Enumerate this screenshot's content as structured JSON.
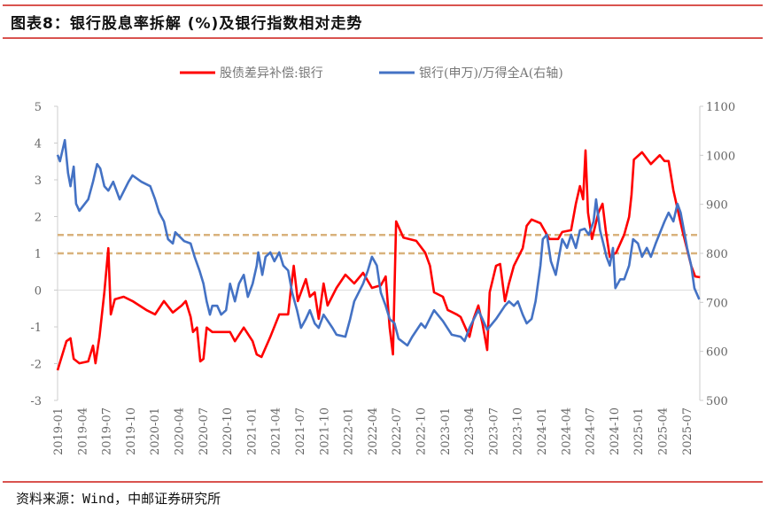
{
  "title": "图表8：银行股息率拆解 (%)及银行指数相对走势",
  "source": "资料来源：Wind，中邮证券研究所",
  "chart_data": {
    "type": "line",
    "title": "图表8：银行股息率拆解 (%)及银行指数相对走势",
    "x_unit": "months since 2019-01",
    "x_tick_labels": [
      "2019-01",
      "2019-04",
      "2019-07",
      "2019-10",
      "2020-01",
      "2020-04",
      "2020-07",
      "2020-10",
      "2021-01",
      "2021-04",
      "2021-07",
      "2021-10",
      "2022-01",
      "2022-04",
      "2022-07",
      "2022-10",
      "2023-01",
      "2023-04",
      "2023-07",
      "2023-10",
      "2024-01",
      "2024-04",
      "2024-07",
      "2024-10",
      "2025-01",
      "2025-04",
      "2025-07"
    ],
    "left_axis": {
      "ylim": [
        -3,
        5
      ],
      "ticks": [
        "-3",
        "-2",
        "-1",
        "0",
        "1",
        "2",
        "3",
        "4",
        "5"
      ]
    },
    "right_axis": {
      "ylim": [
        500,
        1100
      ],
      "ticks": [
        "500",
        "600",
        "700",
        "800",
        "900",
        "1000",
        "1100"
      ]
    },
    "reference_lines": [
      {
        "value": 1.5,
        "axis": "left",
        "color": "#D9B27C"
      },
      {
        "value": 1.0,
        "axis": "left",
        "color": "#D9B27C"
      }
    ],
    "legend_position": "top-center",
    "series": [
      {
        "name": "股债差异补偿:银行",
        "axis": "left",
        "color": "#FF0000",
        "points": [
          [
            0,
            -2.18
          ],
          [
            1.1,
            -1.39
          ],
          [
            1.6,
            -1.31
          ],
          [
            2.0,
            -1.87
          ],
          [
            2.7,
            -1.99
          ],
          [
            3.8,
            -1.94
          ],
          [
            4.4,
            -1.51
          ],
          [
            4.7,
            -1.99
          ],
          [
            5.2,
            -1.27
          ],
          [
            5.8,
            -0.06
          ],
          [
            6.3,
            1.14
          ],
          [
            6.6,
            -0.66
          ],
          [
            7.1,
            -0.25
          ],
          [
            8.2,
            -0.18
          ],
          [
            9.3,
            -0.3
          ],
          [
            11.0,
            -0.54
          ],
          [
            12.1,
            -0.66
          ],
          [
            13.2,
            -0.3
          ],
          [
            14.3,
            -0.61
          ],
          [
            15.4,
            -0.42
          ],
          [
            15.9,
            -0.3
          ],
          [
            16.5,
            -0.73
          ],
          [
            16.8,
            -1.14
          ],
          [
            17.3,
            -1.02
          ],
          [
            17.7,
            -1.94
          ],
          [
            18.1,
            -1.87
          ],
          [
            18.5,
            -1.02
          ],
          [
            19.2,
            -1.14
          ],
          [
            21.4,
            -1.14
          ],
          [
            22.0,
            -1.39
          ],
          [
            23.1,
            -1.02
          ],
          [
            24.2,
            -1.39
          ],
          [
            24.7,
            -1.75
          ],
          [
            25.3,
            -1.82
          ],
          [
            26.4,
            -1.27
          ],
          [
            27.5,
            -0.66
          ],
          [
            28.6,
            -0.66
          ],
          [
            28.9,
            -0.06
          ],
          [
            29.3,
            0.66
          ],
          [
            29.8,
            -0.3
          ],
          [
            30.8,
            0.3
          ],
          [
            31.3,
            -0.18
          ],
          [
            31.9,
            -0.06
          ],
          [
            32.4,
            -0.78
          ],
          [
            33.0,
            0.18
          ],
          [
            33.5,
            -0.42
          ],
          [
            34.6,
            0.06
          ],
          [
            35.7,
            0.42
          ],
          [
            36.8,
            0.18
          ],
          [
            37.9,
            0.47
          ],
          [
            39.0,
            0.06
          ],
          [
            40.1,
            0.13
          ],
          [
            40.7,
            0.37
          ],
          [
            41.2,
            -1.02
          ],
          [
            41.6,
            -1.75
          ],
          [
            42.0,
            1.87
          ],
          [
            42.9,
            1.43
          ],
          [
            44.5,
            1.34
          ],
          [
            45.6,
            1.02
          ],
          [
            46.2,
            0.66
          ],
          [
            46.7,
            -0.06
          ],
          [
            47.8,
            -0.18
          ],
          [
            48.4,
            -0.54
          ],
          [
            49.5,
            -0.66
          ],
          [
            50.0,
            -0.73
          ],
          [
            51.1,
            -1.27
          ],
          [
            51.6,
            -0.78
          ],
          [
            52.2,
            -0.42
          ],
          [
            52.7,
            -0.9
          ],
          [
            53.3,
            -1.63
          ],
          [
            53.6,
            -0.06
          ],
          [
            54.4,
            0.66
          ],
          [
            54.9,
            0.71
          ],
          [
            55.5,
            -0.3
          ],
          [
            56.0,
            0.18
          ],
          [
            56.6,
            0.66
          ],
          [
            57.7,
            1.14
          ],
          [
            58.2,
            1.75
          ],
          [
            58.8,
            1.92
          ],
          [
            59.9,
            1.82
          ],
          [
            61.0,
            1.39
          ],
          [
            62.1,
            1.39
          ],
          [
            62.6,
            1.58
          ],
          [
            63.7,
            1.63
          ],
          [
            64.3,
            2.35
          ],
          [
            64.8,
            2.83
          ],
          [
            65.2,
            2.47
          ],
          [
            65.5,
            3.8
          ],
          [
            65.8,
            2.11
          ],
          [
            66.3,
            1.39
          ],
          [
            67.1,
            2.11
          ],
          [
            67.6,
            2.35
          ],
          [
            68.0,
            1.63
          ],
          [
            68.5,
            0.9
          ],
          [
            69.3,
            1.02
          ],
          [
            70.3,
            1.51
          ],
          [
            70.9,
            1.99
          ],
          [
            71.2,
            2.59
          ],
          [
            71.5,
            3.55
          ],
          [
            72.5,
            3.75
          ],
          [
            73.6,
            3.43
          ],
          [
            74.7,
            3.67
          ],
          [
            75.3,
            3.51
          ],
          [
            75.8,
            3.51
          ],
          [
            76.4,
            2.71
          ],
          [
            77.5,
            1.63
          ],
          [
            78.6,
            0.66
          ],
          [
            79.1,
            0.37
          ],
          [
            79.7,
            0.35
          ]
        ]
      },
      {
        "name": "银行(申万)/万得全A(右轴)",
        "axis": "right",
        "color": "#4472C4",
        "points": [
          [
            0,
            1001
          ],
          [
            0.3,
            988
          ],
          [
            0.9,
            1031
          ],
          [
            1.3,
            964
          ],
          [
            1.6,
            937
          ],
          [
            2.0,
            977
          ],
          [
            2.3,
            901
          ],
          [
            2.7,
            887
          ],
          [
            3.8,
            910
          ],
          [
            4.4,
            946
          ],
          [
            4.9,
            982
          ],
          [
            5.3,
            973
          ],
          [
            5.8,
            937
          ],
          [
            6.3,
            928
          ],
          [
            6.9,
            946
          ],
          [
            7.7,
            910
          ],
          [
            8.8,
            946
          ],
          [
            9.3,
            959
          ],
          [
            10.4,
            946
          ],
          [
            11.5,
            937
          ],
          [
            12.1,
            910
          ],
          [
            12.6,
            883
          ],
          [
            13.2,
            865
          ],
          [
            13.7,
            829
          ],
          [
            14.3,
            820
          ],
          [
            14.6,
            843
          ],
          [
            15.7,
            825
          ],
          [
            16.5,
            820
          ],
          [
            17.0,
            793
          ],
          [
            17.6,
            765
          ],
          [
            18.1,
            738
          ],
          [
            18.5,
            702
          ],
          [
            18.9,
            675
          ],
          [
            19.2,
            693
          ],
          [
            19.8,
            693
          ],
          [
            20.3,
            675
          ],
          [
            20.9,
            684
          ],
          [
            21.4,
            738
          ],
          [
            22.0,
            702
          ],
          [
            22.5,
            738
          ],
          [
            23.1,
            756
          ],
          [
            23.6,
            711
          ],
          [
            24.2,
            738
          ],
          [
            24.7,
            775
          ],
          [
            24.9,
            802
          ],
          [
            25.4,
            756
          ],
          [
            25.8,
            793
          ],
          [
            26.4,
            802
          ],
          [
            26.9,
            784
          ],
          [
            27.5,
            802
          ],
          [
            28.0,
            775
          ],
          [
            28.6,
            765
          ],
          [
            29.1,
            720
          ],
          [
            29.7,
            684
          ],
          [
            30.2,
            648
          ],
          [
            30.8,
            666
          ],
          [
            31.3,
            684
          ],
          [
            31.9,
            657
          ],
          [
            32.4,
            648
          ],
          [
            33.0,
            675
          ],
          [
            34.1,
            648
          ],
          [
            34.6,
            634
          ],
          [
            35.7,
            630
          ],
          [
            36.3,
            666
          ],
          [
            36.8,
            702
          ],
          [
            37.9,
            738
          ],
          [
            38.5,
            765
          ],
          [
            39.0,
            793
          ],
          [
            39.6,
            775
          ],
          [
            40.1,
            720
          ],
          [
            40.7,
            693
          ],
          [
            41.2,
            666
          ],
          [
            41.8,
            657
          ],
          [
            42.3,
            626
          ],
          [
            43.4,
            612
          ],
          [
            44.0,
            630
          ],
          [
            45.1,
            657
          ],
          [
            45.6,
            648
          ],
          [
            46.7,
            684
          ],
          [
            47.8,
            662
          ],
          [
            48.9,
            634
          ],
          [
            50.0,
            630
          ],
          [
            50.5,
            621
          ],
          [
            51.1,
            648
          ],
          [
            52.2,
            684
          ],
          [
            52.7,
            666
          ],
          [
            53.3,
            644
          ],
          [
            54.4,
            666
          ],
          [
            55.5,
            693
          ],
          [
            56.0,
            702
          ],
          [
            56.6,
            693
          ],
          [
            57.1,
            702
          ],
          [
            57.7,
            675
          ],
          [
            58.2,
            657
          ],
          [
            58.8,
            666
          ],
          [
            59.3,
            702
          ],
          [
            59.9,
            775
          ],
          [
            60.2,
            829
          ],
          [
            60.7,
            838
          ],
          [
            61.2,
            784
          ],
          [
            61.8,
            756
          ],
          [
            62.1,
            784
          ],
          [
            62.6,
            829
          ],
          [
            63.2,
            811
          ],
          [
            63.7,
            838
          ],
          [
            64.3,
            811
          ],
          [
            64.8,
            847
          ],
          [
            65.4,
            850
          ],
          [
            65.9,
            838
          ],
          [
            66.5,
            865
          ],
          [
            66.8,
            910
          ],
          [
            67.3,
            847
          ],
          [
            67.7,
            820
          ],
          [
            68.1,
            793
          ],
          [
            68.5,
            775
          ],
          [
            68.9,
            811
          ],
          [
            69.2,
            729
          ],
          [
            69.8,
            747
          ],
          [
            70.3,
            747
          ],
          [
            70.9,
            775
          ],
          [
            71.4,
            829
          ],
          [
            72.0,
            820
          ],
          [
            72.5,
            793
          ],
          [
            73.1,
            811
          ],
          [
            73.6,
            793
          ],
          [
            74.2,
            820
          ],
          [
            75.3,
            865
          ],
          [
            75.8,
            883
          ],
          [
            76.4,
            865
          ],
          [
            76.9,
            901
          ],
          [
            77.3,
            883
          ],
          [
            77.7,
            847
          ],
          [
            78.1,
            811
          ],
          [
            78.6,
            775
          ],
          [
            79.0,
            729
          ],
          [
            79.6,
            706
          ]
        ]
      }
    ]
  }
}
